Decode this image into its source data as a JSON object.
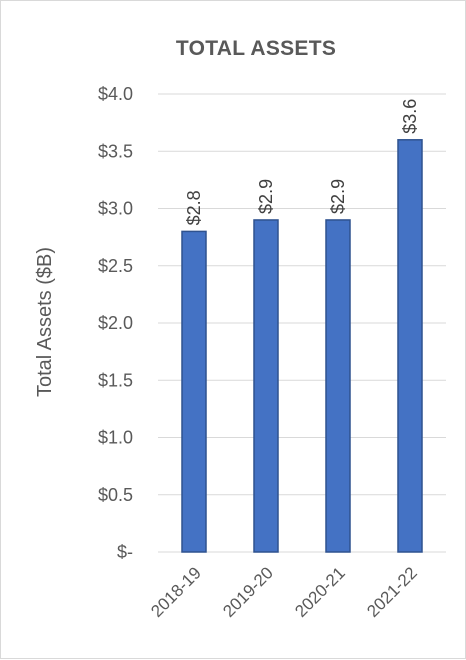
{
  "chart_data": {
    "type": "bar",
    "title": "TOTAL ASSETS",
    "ylabel": "Total Assets ($B)",
    "xlabel": "",
    "categories": [
      "2018-19",
      "2019-20",
      "2020-21",
      "2021-22"
    ],
    "values": [
      2.8,
      2.9,
      2.9,
      3.6
    ],
    "data_labels": [
      "$2.8",
      "$2.9",
      "$2.9",
      "$3.6"
    ],
    "ylim": [
      0,
      4.0
    ],
    "yticks": [
      0,
      0.5,
      1.0,
      1.5,
      2.0,
      2.5,
      3.0,
      3.5,
      4.0
    ],
    "ytick_labels": [
      "$-",
      "$0.5",
      "$1.0",
      "$1.5",
      "$2.0",
      "$2.5",
      "$3.0",
      "$3.5",
      "$4.0"
    ],
    "grid": true,
    "legend": "none",
    "colors": {
      "bar_fill": "#4472C4",
      "bar_stroke": "#2F528F",
      "grid": "#d9d9d9",
      "text": "#595959"
    }
  }
}
